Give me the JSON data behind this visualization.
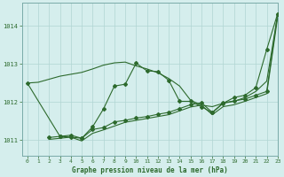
{
  "xlabel": "Graphe pression niveau de la mer (hPa)",
  "xlim": [
    -0.5,
    23
  ],
  "ylim": [
    1010.6,
    1014.6
  ],
  "yticks": [
    1011,
    1012,
    1013,
    1014
  ],
  "xticks": [
    0,
    1,
    2,
    3,
    4,
    5,
    6,
    7,
    8,
    9,
    10,
    11,
    12,
    13,
    14,
    15,
    16,
    17,
    18,
    19,
    20,
    21,
    22,
    23
  ],
  "bg_color": "#d5eeed",
  "grid_color": "#b0d5d3",
  "line_color": "#2d6a2d",
  "series": [
    {
      "x": [
        0,
        1,
        2,
        3,
        4,
        5,
        6,
        7,
        8,
        9,
        10,
        11,
        12,
        13,
        14,
        15,
        16,
        17,
        18,
        19,
        20,
        21,
        22,
        23
      ],
      "y": [
        1012.5,
        1012.52,
        1012.6,
        1012.68,
        1012.73,
        1012.78,
        1012.87,
        1012.97,
        1013.03,
        1013.05,
        1012.95,
        1012.87,
        1012.77,
        1012.62,
        1012.42,
        1012.05,
        1011.92,
        1011.88,
        1011.97,
        1012.02,
        1012.12,
        1012.28,
        1012.55,
        1014.28
      ],
      "marker": false
    },
    {
      "x": [
        0,
        3,
        4,
        5,
        6,
        7,
        8,
        9,
        10,
        11,
        12,
        13,
        14,
        15,
        16,
        17,
        18,
        19,
        20,
        21,
        22,
        23
      ],
      "y": [
        1012.5,
        1011.1,
        1011.08,
        1011.05,
        1011.35,
        1011.82,
        1012.42,
        1012.47,
        1013.02,
        1012.82,
        1012.8,
        1012.57,
        1012.02,
        1012.02,
        1011.88,
        1011.72,
        1011.97,
        1012.12,
        1012.18,
        1012.38,
        1013.38,
        1014.32
      ],
      "marker": true
    },
    {
      "x": [
        2,
        3,
        4,
        5,
        6,
        7,
        8,
        9,
        10,
        11,
        12,
        13,
        14,
        15,
        16,
        17,
        18,
        19,
        20,
        21,
        22,
        23
      ],
      "y": [
        1011.07,
        1011.1,
        1011.13,
        1011.05,
        1011.28,
        1011.33,
        1011.48,
        1011.52,
        1011.58,
        1011.62,
        1011.68,
        1011.73,
        1011.83,
        1011.93,
        1011.98,
        1011.73,
        1011.98,
        1012.03,
        1012.08,
        1012.18,
        1012.28,
        1014.32
      ],
      "marker": true
    },
    {
      "x": [
        2,
        3,
        4,
        5,
        6,
        7,
        8,
        9,
        10,
        11,
        12,
        13,
        14,
        15,
        16,
        17,
        18,
        19,
        20,
        21,
        22,
        23
      ],
      "y": [
        1011.02,
        1011.05,
        1011.08,
        1010.98,
        1011.18,
        1011.27,
        1011.37,
        1011.47,
        1011.52,
        1011.57,
        1011.62,
        1011.67,
        1011.77,
        1011.87,
        1011.92,
        1011.67,
        1011.88,
        1011.93,
        1012.02,
        1012.12,
        1012.22,
        1014.22
      ],
      "marker": false
    }
  ]
}
